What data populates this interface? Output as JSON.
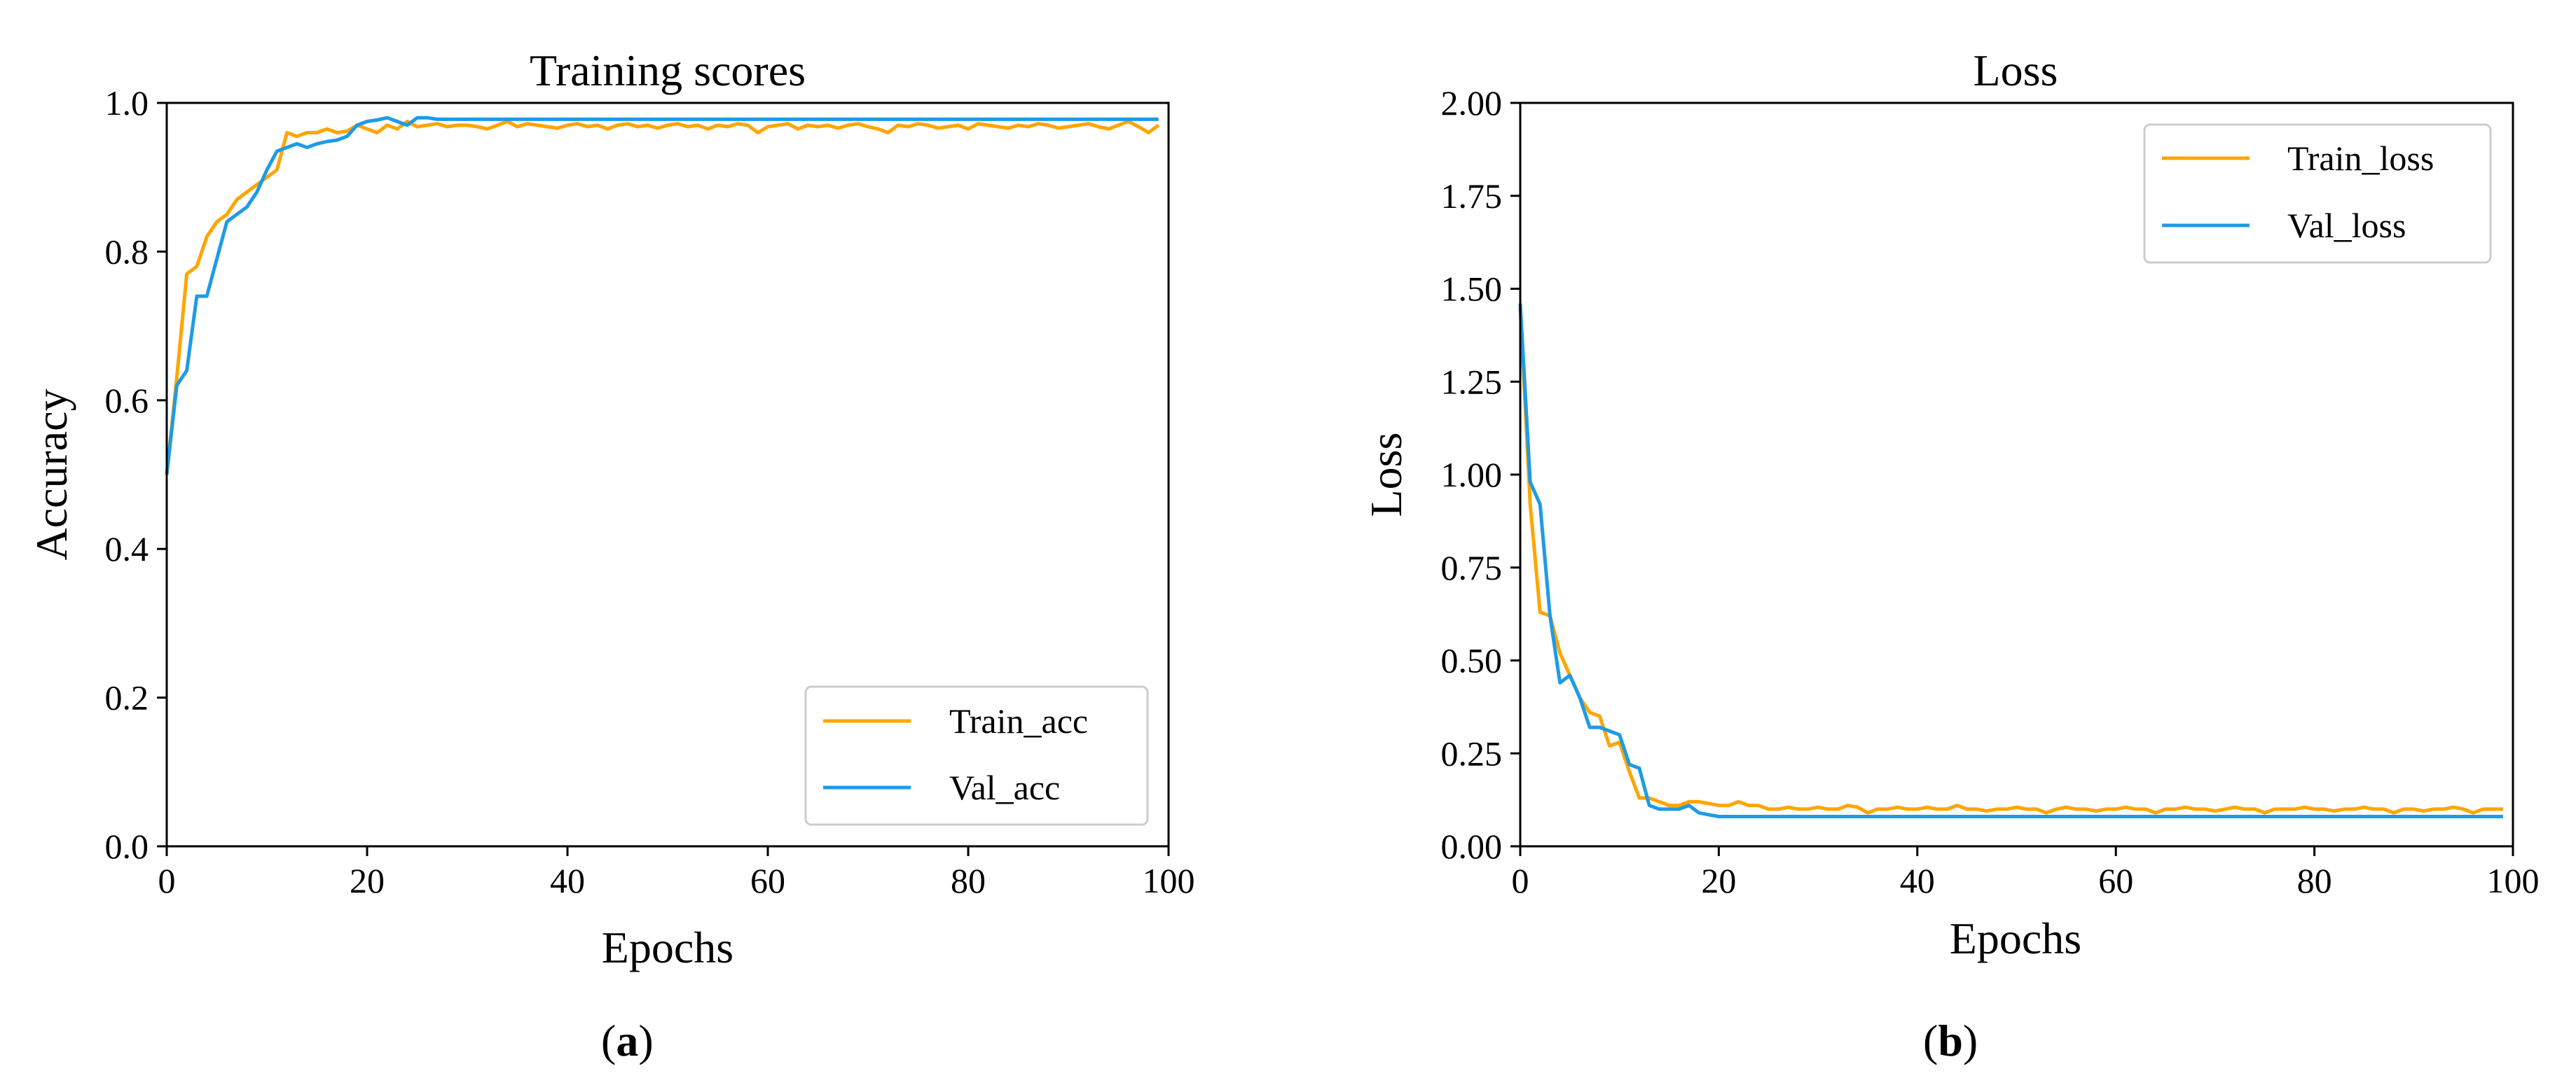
{
  "colors": {
    "train": "#FFA500",
    "val": "#1E9BE6"
  },
  "charts": [
    {
      "title": "Training scores",
      "xlabel": "Epochs",
      "ylabel": "Accuracy",
      "caption_letter": "a",
      "legend": [
        "Train_acc",
        "Val_acc"
      ],
      "legend_loc": "lower-right"
    },
    {
      "title": "Loss",
      "xlabel": "Epochs",
      "ylabel": "Loss",
      "caption_letter": "b",
      "legend": [
        "Train_loss",
        "Val_loss"
      ],
      "legend_loc": "upper-right"
    }
  ],
  "chart_data": [
    {
      "type": "line",
      "title": "Training scores",
      "xlabel": "Epochs",
      "ylabel": "Accuracy",
      "xlim": [
        0,
        100
      ],
      "ylim": [
        0.0,
        1.0
      ],
      "xticks": [
        0,
        20,
        40,
        60,
        80,
        100
      ],
      "xtick_labels": [
        "0",
        "20",
        "40",
        "60",
        "80",
        "100"
      ],
      "yticks": [
        0.0,
        0.2,
        0.4,
        0.6,
        0.8,
        1.0
      ],
      "ytick_labels": [
        "0.0",
        "0.2",
        "0.4",
        "0.6",
        "0.8",
        "1.0"
      ],
      "grid": false,
      "legend_loc": "lower-right",
      "series": [
        {
          "name": "Train_acc",
          "color": "#FFA500",
          "x": [
            0,
            1,
            2,
            3,
            4,
            5,
            6,
            7,
            8,
            9,
            10,
            11,
            12,
            13,
            14,
            15,
            16,
            17,
            18,
            19,
            20,
            21,
            22,
            23,
            24,
            25,
            26,
            27,
            28,
            29,
            30,
            31,
            32,
            33,
            34,
            35,
            36,
            37,
            38,
            39,
            40,
            41,
            42,
            43,
            44,
            45,
            46,
            47,
            48,
            49,
            50,
            51,
            52,
            53,
            54,
            55,
            56,
            57,
            58,
            59,
            60,
            61,
            62,
            63,
            64,
            65,
            66,
            67,
            68,
            69,
            70,
            71,
            72,
            73,
            74,
            75,
            76,
            77,
            78,
            79,
            80,
            81,
            82,
            83,
            84,
            85,
            86,
            87,
            88,
            89,
            90,
            91,
            92,
            93,
            94,
            95,
            96,
            97,
            98,
            99
          ],
          "values": [
            0.5,
            0.63,
            0.77,
            0.78,
            0.82,
            0.84,
            0.85,
            0.87,
            0.88,
            0.89,
            0.9,
            0.91,
            0.96,
            0.955,
            0.96,
            0.96,
            0.965,
            0.96,
            0.962,
            0.97,
            0.965,
            0.96,
            0.97,
            0.965,
            0.975,
            0.968,
            0.97,
            0.972,
            0.968,
            0.97,
            0.97,
            0.968,
            0.965,
            0.97,
            0.975,
            0.968,
            0.972,
            0.97,
            0.968,
            0.966,
            0.97,
            0.972,
            0.968,
            0.97,
            0.965,
            0.97,
            0.972,
            0.968,
            0.97,
            0.966,
            0.97,
            0.972,
            0.968,
            0.97,
            0.965,
            0.97,
            0.968,
            0.972,
            0.97,
            0.96,
            0.968,
            0.97,
            0.972,
            0.965,
            0.97,
            0.968,
            0.97,
            0.966,
            0.97,
            0.972,
            0.968,
            0.965,
            0.96,
            0.97,
            0.968,
            0.972,
            0.97,
            0.966,
            0.968,
            0.97,
            0.965,
            0.972,
            0.97,
            0.968,
            0.966,
            0.97,
            0.968,
            0.972,
            0.97,
            0.966,
            0.968,
            0.97,
            0.972,
            0.968,
            0.965,
            0.97,
            0.975,
            0.968,
            0.96,
            0.97
          ]
        },
        {
          "name": "Val_acc",
          "color": "#1E9BE6",
          "x": [
            0,
            1,
            2,
            3,
            4,
            5,
            6,
            7,
            8,
            9,
            10,
            11,
            12,
            13,
            14,
            15,
            16,
            17,
            18,
            19,
            20,
            21,
            22,
            23,
            24,
            25,
            26,
            27,
            28,
            29,
            30,
            31,
            32,
            33,
            34,
            35,
            36,
            37,
            38,
            39,
            40,
            41,
            42,
            43,
            44,
            45,
            46,
            47,
            48,
            49,
            50,
            51,
            52,
            53,
            54,
            55,
            56,
            57,
            58,
            59,
            60,
            61,
            62,
            63,
            64,
            65,
            66,
            67,
            68,
            69,
            70,
            71,
            72,
            73,
            74,
            75,
            76,
            77,
            78,
            79,
            80,
            81,
            82,
            83,
            84,
            85,
            86,
            87,
            88,
            89,
            90,
            91,
            92,
            93,
            94,
            95,
            96,
            97,
            98,
            99
          ],
          "values": [
            0.5,
            0.62,
            0.64,
            0.74,
            0.74,
            0.79,
            0.84,
            0.85,
            0.86,
            0.88,
            0.91,
            0.935,
            0.94,
            0.945,
            0.94,
            0.945,
            0.948,
            0.95,
            0.955,
            0.97,
            0.975,
            0.977,
            0.98,
            0.975,
            0.97,
            0.98,
            0.98,
            0.978,
            0.978,
            0.978,
            0.978,
            0.978,
            0.978,
            0.978,
            0.978,
            0.978,
            0.978,
            0.978,
            0.978,
            0.978,
            0.978,
            0.978,
            0.978,
            0.978,
            0.978,
            0.978,
            0.978,
            0.978,
            0.978,
            0.978,
            0.978,
            0.978,
            0.978,
            0.978,
            0.978,
            0.978,
            0.978,
            0.978,
            0.978,
            0.978,
            0.978,
            0.978,
            0.978,
            0.978,
            0.978,
            0.978,
            0.978,
            0.978,
            0.978,
            0.978,
            0.978,
            0.978,
            0.978,
            0.978,
            0.978,
            0.978,
            0.978,
            0.978,
            0.978,
            0.978,
            0.978,
            0.978,
            0.978,
            0.978,
            0.978,
            0.978,
            0.978,
            0.978,
            0.978,
            0.978,
            0.978,
            0.978,
            0.978,
            0.978,
            0.978,
            0.978,
            0.978,
            0.978,
            0.978,
            0.978
          ]
        }
      ]
    },
    {
      "type": "line",
      "title": "Loss",
      "xlabel": "Epochs",
      "ylabel": "Loss",
      "xlim": [
        0,
        100
      ],
      "ylim": [
        0.0,
        2.0
      ],
      "xticks": [
        0,
        20,
        40,
        60,
        80,
        100
      ],
      "xtick_labels": [
        "0",
        "20",
        "40",
        "60",
        "80",
        "100"
      ],
      "yticks": [
        0.0,
        0.25,
        0.5,
        0.75,
        1.0,
        1.25,
        1.5,
        1.75,
        2.0
      ],
      "ytick_labels": [
        "0.00",
        "0.25",
        "0.50",
        "0.75",
        "1.00",
        "1.25",
        "1.50",
        "1.75",
        "2.00"
      ],
      "grid": false,
      "legend_loc": "upper-right",
      "series": [
        {
          "name": "Train_loss",
          "color": "#FFA500",
          "x": [
            0,
            1,
            2,
            3,
            4,
            5,
            6,
            7,
            8,
            9,
            10,
            11,
            12,
            13,
            14,
            15,
            16,
            17,
            18,
            19,
            20,
            21,
            22,
            23,
            24,
            25,
            26,
            27,
            28,
            29,
            30,
            31,
            32,
            33,
            34,
            35,
            36,
            37,
            38,
            39,
            40,
            41,
            42,
            43,
            44,
            45,
            46,
            47,
            48,
            49,
            50,
            51,
            52,
            53,
            54,
            55,
            56,
            57,
            58,
            59,
            60,
            61,
            62,
            63,
            64,
            65,
            66,
            67,
            68,
            69,
            70,
            71,
            72,
            73,
            74,
            75,
            76,
            77,
            78,
            79,
            80,
            81,
            82,
            83,
            84,
            85,
            86,
            87,
            88,
            89,
            90,
            91,
            92,
            93,
            94,
            95,
            96,
            97,
            98,
            99
          ],
          "values": [
            1.45,
            0.92,
            0.63,
            0.62,
            0.52,
            0.46,
            0.4,
            0.36,
            0.35,
            0.27,
            0.28,
            0.2,
            0.13,
            0.13,
            0.12,
            0.11,
            0.11,
            0.12,
            0.12,
            0.115,
            0.11,
            0.11,
            0.12,
            0.11,
            0.11,
            0.1,
            0.1,
            0.105,
            0.1,
            0.1,
            0.105,
            0.1,
            0.1,
            0.11,
            0.105,
            0.09,
            0.1,
            0.1,
            0.105,
            0.1,
            0.1,
            0.105,
            0.1,
            0.1,
            0.11,
            0.1,
            0.1,
            0.095,
            0.1,
            0.1,
            0.105,
            0.1,
            0.1,
            0.09,
            0.1,
            0.105,
            0.1,
            0.1,
            0.095,
            0.1,
            0.1,
            0.105,
            0.1,
            0.1,
            0.09,
            0.1,
            0.1,
            0.105,
            0.1,
            0.1,
            0.095,
            0.1,
            0.105,
            0.1,
            0.1,
            0.09,
            0.1,
            0.1,
            0.1,
            0.105,
            0.1,
            0.1,
            0.095,
            0.1,
            0.1,
            0.105,
            0.1,
            0.1,
            0.09,
            0.1,
            0.1,
            0.095,
            0.1,
            0.1,
            0.105,
            0.1,
            0.09,
            0.1,
            0.1,
            0.1
          ]
        },
        {
          "name": "Val_loss",
          "color": "#1E9BE6",
          "x": [
            0,
            1,
            2,
            3,
            4,
            5,
            6,
            7,
            8,
            9,
            10,
            11,
            12,
            13,
            14,
            15,
            16,
            17,
            18,
            19,
            20,
            21,
            22,
            23,
            24,
            25,
            26,
            27,
            28,
            29,
            30,
            31,
            32,
            33,
            34,
            35,
            36,
            37,
            38,
            39,
            40,
            41,
            42,
            43,
            44,
            45,
            46,
            47,
            48,
            49,
            50,
            51,
            52,
            53,
            54,
            55,
            56,
            57,
            58,
            59,
            60,
            61,
            62,
            63,
            64,
            65,
            66,
            67,
            68,
            69,
            70,
            71,
            72,
            73,
            74,
            75,
            76,
            77,
            78,
            79,
            80,
            81,
            82,
            83,
            84,
            85,
            86,
            87,
            88,
            89,
            90,
            91,
            92,
            93,
            94,
            95,
            96,
            97,
            98,
            99
          ],
          "values": [
            1.46,
            0.98,
            0.92,
            0.62,
            0.44,
            0.46,
            0.4,
            0.32,
            0.32,
            0.31,
            0.3,
            0.22,
            0.21,
            0.11,
            0.1,
            0.1,
            0.1,
            0.11,
            0.09,
            0.085,
            0.08,
            0.08,
            0.08,
            0.08,
            0.08,
            0.08,
            0.08,
            0.08,
            0.08,
            0.08,
            0.08,
            0.08,
            0.08,
            0.08,
            0.08,
            0.08,
            0.08,
            0.08,
            0.08,
            0.08,
            0.08,
            0.08,
            0.08,
            0.08,
            0.08,
            0.08,
            0.08,
            0.08,
            0.08,
            0.08,
            0.08,
            0.08,
            0.08,
            0.08,
            0.08,
            0.08,
            0.08,
            0.08,
            0.08,
            0.08,
            0.08,
            0.08,
            0.08,
            0.08,
            0.08,
            0.08,
            0.08,
            0.08,
            0.08,
            0.08,
            0.08,
            0.08,
            0.08,
            0.08,
            0.08,
            0.08,
            0.08,
            0.08,
            0.08,
            0.08,
            0.08,
            0.08,
            0.08,
            0.08,
            0.08,
            0.08,
            0.08,
            0.08,
            0.08,
            0.08,
            0.08,
            0.08,
            0.08,
            0.08,
            0.08,
            0.08,
            0.08,
            0.08,
            0.08,
            0.08
          ]
        }
      ]
    }
  ]
}
